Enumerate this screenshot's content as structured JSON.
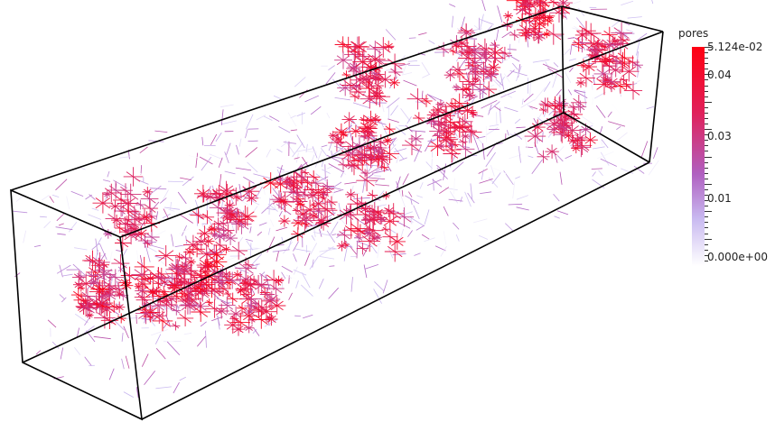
{
  "scalar_bar": {
    "title": "pores",
    "max_label": "5.124e-02",
    "min_label": "0.000e+00",
    "mid_labels": [
      "0.04",
      "0.03",
      "0.01"
    ]
  },
  "colors": {
    "high": "#ff0011",
    "mid_high": "#e0205a",
    "mid": "#b060c0",
    "low": "#c8b8f0",
    "min": "#ffffff",
    "frame": "#000000"
  }
}
